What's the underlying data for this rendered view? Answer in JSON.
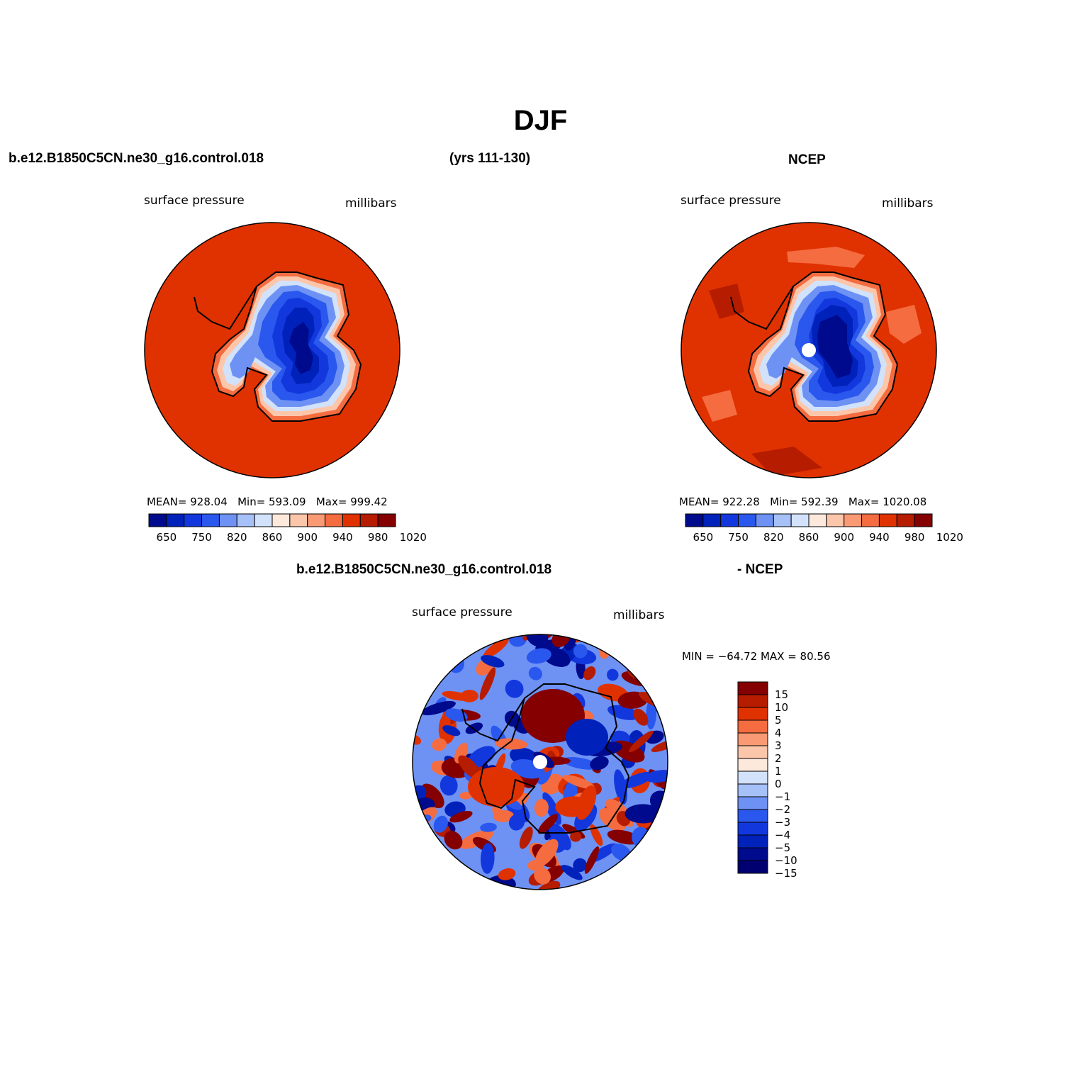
{
  "title": "DJF",
  "colors": {
    "ocean_red": "#e03200",
    "dark_navy": "#000a7a",
    "outline": "#000000",
    "mean_palette": [
      "#000a8c",
      "#0022bb",
      "#1238dd",
      "#2a58ee",
      "#6e92f4",
      "#a6c0f8",
      "#d2e2fb",
      "#fde8dc",
      "#fcc6ab",
      "#f99a74",
      "#f46c40",
      "#e03200",
      "#b61c00",
      "#850000"
    ],
    "diff_palette": [
      "#850000",
      "#b61c00",
      "#e03200",
      "#f46c40",
      "#f99a74",
      "#fcc6ab",
      "#fde8dc",
      "#d2e2fb",
      "#a6c0f8",
      "#6e92f4",
      "#2a58ee",
      "#1238dd",
      "#0022bb",
      "#000a8c",
      "#000070"
    ]
  },
  "top_left": {
    "case": "b.e12.B1850C5CN.ne30_g16.control.018",
    "years": "(yrs 111-130)",
    "variable": "surface pressure",
    "units": "millibars",
    "stats": {
      "mean_label": "MEAN=",
      "mean": "928.04",
      "min_label": "Min=",
      "min": "593.09",
      "max_label": "Max=",
      "max": "999.42"
    },
    "colorbar_labels": [
      "650",
      "750",
      "820",
      "860",
      "900",
      "940",
      "980",
      "1020"
    ]
  },
  "top_right": {
    "case": "NCEP",
    "variable": "surface pressure",
    "units": "millibars",
    "stats": {
      "mean_label": "MEAN=",
      "mean": "922.28",
      "min_label": "Min=",
      "min": "592.39",
      "max_label": "Max=",
      "max": "1020.08"
    },
    "colorbar_labels": [
      "650",
      "750",
      "820",
      "860",
      "900",
      "940",
      "980",
      "1020"
    ]
  },
  "bottom": {
    "case": "b.e12.B1850C5CN.ne30_g16.control.018",
    "case_suffix": "- NCEP",
    "variable": "surface pressure",
    "units": "millibars",
    "minmax": "MIN = −64.72 MAX =  80.56",
    "colorbar_labels": [
      "15",
      "10",
      "5",
      "4",
      "3",
      "2",
      "1",
      "0",
      "−1",
      "−2",
      "−3",
      "−4",
      "−5",
      "−10",
      "−15"
    ]
  },
  "chart_data": [
    {
      "type": "heatmap",
      "projection": "south polar stereographic",
      "title": "surface pressure",
      "units": "millibars",
      "case": "b.e12.B1850C5CN.ne30_g16.control.018",
      "years": "(yrs 111-130)",
      "mean": 928.04,
      "min": 593.09,
      "max": 999.42,
      "contour_levels": [
        650,
        700,
        750,
        800,
        820,
        840,
        860,
        880,
        900,
        920,
        940,
        960,
        980,
        1000,
        1020
      ]
    },
    {
      "type": "heatmap",
      "projection": "south polar stereographic",
      "title": "surface pressure",
      "units": "millibars",
      "case": "NCEP",
      "mean": 922.28,
      "min": 592.39,
      "max": 1020.08,
      "contour_levels": [
        650,
        700,
        750,
        800,
        820,
        840,
        860,
        880,
        900,
        920,
        940,
        960,
        980,
        1000,
        1020
      ]
    },
    {
      "type": "heatmap",
      "projection": "south polar stereographic",
      "title": "surface pressure",
      "units": "millibars",
      "case": "b.e12.B1850C5CN.ne30_g16.control.018 - NCEP",
      "min": -64.72,
      "max": 80.56,
      "contour_levels": [
        -15,
        -10,
        -5,
        -4,
        -3,
        -2,
        -1,
        0,
        1,
        2,
        3,
        4,
        5,
        10,
        15
      ]
    }
  ]
}
